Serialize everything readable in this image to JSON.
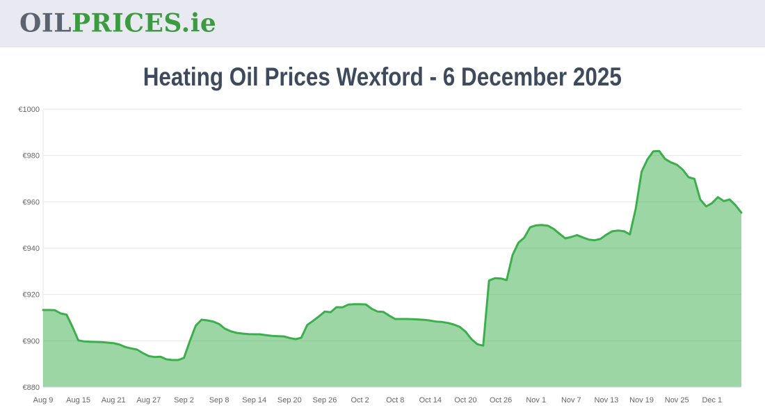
{
  "header": {
    "logo_part_oil": "OIL",
    "logo_part_prices": "PRICES",
    "logo_part_ie": ".ie"
  },
  "title": "Heating Oil Prices Wexford - 6 December 2025",
  "colors": {
    "line_green": "#3cae4c",
    "grid": "#e6e6e6",
    "axis_text": "#666666",
    "x_axis_line": "#ccd6eb",
    "header_bg": "#e9eaf1",
    "logo_gray": "#5b6370",
    "logo_green": "#3c9a41",
    "title_color": "#3e4b5c"
  },
  "chart_data": {
    "type": "area",
    "title": "Heating Oil Prices Wexford - 6 December 2025",
    "grid": true,
    "legend": false,
    "y_axis": {
      "min": 880,
      "max": 1000,
      "tick_step": 20,
      "tick_labels": [
        "€880",
        "€900",
        "€920",
        "€940",
        "€960",
        "€980",
        "€1000"
      ]
    },
    "x_axis": {
      "tick_labels": [
        "Aug 9",
        "Aug 15",
        "Aug 21",
        "Aug 27",
        "Sep 2",
        "Sep 8",
        "Sep 14",
        "Sep 20",
        "Sep 26",
        "Oct 2",
        "Oct 8",
        "Oct 14",
        "Oct 20",
        "Oct 26",
        "Nov 1",
        "Nov 7",
        "Nov 13",
        "Nov 19",
        "Nov 25",
        "Dec 1"
      ],
      "tick_day_indices": [
        0,
        6,
        12,
        18,
        24,
        30,
        36,
        42,
        48,
        54,
        60,
        66,
        72,
        78,
        84,
        90,
        96,
        102,
        108,
        114
      ]
    },
    "series": [
      {
        "color": "#3cae4c",
        "fill_opacity": 0.5,
        "values": [
          913.3,
          913.3,
          913.2,
          911.8,
          911.3,
          906.0,
          900.2,
          899.7,
          899.6,
          899.5,
          899.4,
          899.2,
          899.0,
          898.4,
          897.3,
          896.7,
          896.2,
          894.7,
          893.4,
          893.0,
          893.1,
          892.0,
          891.7,
          891.7,
          892.6,
          899.8,
          906.5,
          909.1,
          908.8,
          908.3,
          907.2,
          905.2,
          904.1,
          903.4,
          903.1,
          902.9,
          902.8,
          902.8,
          902.4,
          902.1,
          902.0,
          901.9,
          901.2,
          900.7,
          901.3,
          906.8,
          908.6,
          910.5,
          912.6,
          912.3,
          914.5,
          914.4,
          915.6,
          915.8,
          915.8,
          915.7,
          913.8,
          912.6,
          912.5,
          910.8,
          909.4,
          909.4,
          909.4,
          909.3,
          909.2,
          909.0,
          908.7,
          908.3,
          908.1,
          907.7,
          907.0,
          906.0,
          903.9,
          900.7,
          898.5,
          897.9,
          926.0,
          927.0,
          926.9,
          926.2,
          937.0,
          942.3,
          944.5,
          949.0,
          949.8,
          950.0,
          949.7,
          948.3,
          946.2,
          944.2,
          944.8,
          945.6,
          944.6,
          943.7,
          943.4,
          944.0,
          945.8,
          947.3,
          947.6,
          947.3,
          945.9,
          957.0,
          973.0,
          978.3,
          981.8,
          981.9,
          978.5,
          977.0,
          976.0,
          973.9,
          970.6,
          969.9,
          961.0,
          958.0,
          959.4,
          962.0,
          960.3,
          961.0,
          958.5,
          955.3
        ]
      }
    ]
  }
}
